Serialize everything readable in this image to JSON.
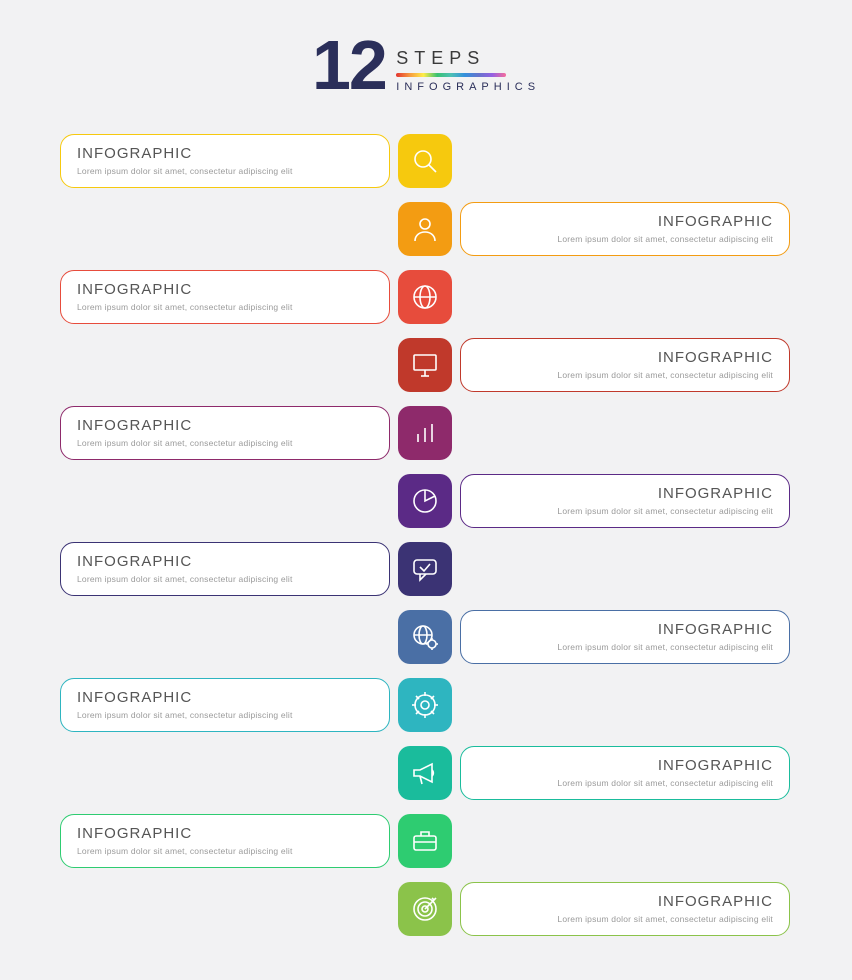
{
  "header": {
    "number": "12",
    "steps": "STEPS",
    "sub": "INFOGRAPHICS"
  },
  "card_title": "INFOGRAPHIC",
  "card_sub": "Lorem ipsum dolor sit amet, consectetur adipiscing elit",
  "steps": [
    {
      "side": "left",
      "color": "#f6c90e",
      "icon": "search"
    },
    {
      "side": "right",
      "color": "#f39c12",
      "icon": "user"
    },
    {
      "side": "left",
      "color": "#e74c3c",
      "icon": "globe"
    },
    {
      "side": "right",
      "color": "#c0392b",
      "icon": "monitor"
    },
    {
      "side": "left",
      "color": "#8e2a6b",
      "icon": "bars"
    },
    {
      "side": "right",
      "color": "#5b2a86",
      "icon": "pie"
    },
    {
      "side": "left",
      "color": "#3b3374",
      "icon": "chat"
    },
    {
      "side": "right",
      "color": "#4a6fa5",
      "icon": "globe-gear"
    },
    {
      "side": "left",
      "color": "#2eb5c0",
      "icon": "gear"
    },
    {
      "side": "right",
      "color": "#1abc9c",
      "icon": "megaphone"
    },
    {
      "side": "left",
      "color": "#2ecc71",
      "icon": "briefcase"
    },
    {
      "side": "right",
      "color": "#8bc34a",
      "icon": "target"
    }
  ]
}
